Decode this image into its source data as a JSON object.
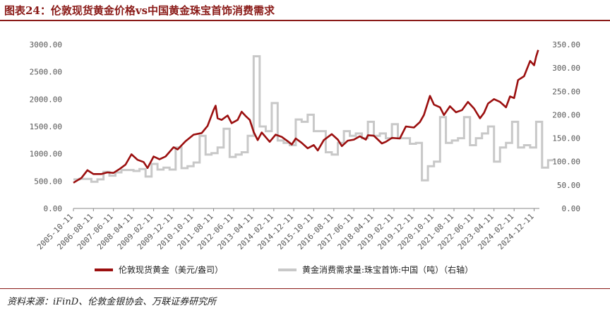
{
  "title": "图表24：伦敦现货黄金价格vs中国黄金珠宝首饰消费需求",
  "source": "资料来源：iFinD、伦敦金银协会、万联证券研究所",
  "colors": {
    "accent": "#8a1a17",
    "gold": "#9b0f0f",
    "demand": "#c8c8c8"
  },
  "chart_data": {
    "type": "line",
    "left_axis": {
      "ylim": [
        0,
        3000
      ],
      "ticks": [
        "0.00",
        "500.00",
        "1000.00",
        "1500.00",
        "2000.00",
        "2500.00",
        "3000.00"
      ]
    },
    "right_axis": {
      "ylim": [
        0,
        350
      ],
      "ticks": [
        "0.00",
        "50.00",
        "100.00",
        "150.00",
        "200.00",
        "250.00",
        "300.00",
        "350.00"
      ]
    },
    "x_ticks": [
      "2005-10-11",
      "2006-08-11",
      "2007-06-11",
      "2008-04-11",
      "2009-02-11",
      "2009-12-11",
      "2010-10-11",
      "2011-08-11",
      "2012-06-11",
      "2013-04-11",
      "2014-02-11",
      "2014-12-11",
      "2015-10-11",
      "2016-08-11",
      "2017-06-11",
      "2018-04-11",
      "2019-02-11",
      "2019-12-11",
      "2020-10-11",
      "2021-08-11",
      "2022-06-11",
      "2023-04-11",
      "2024-02-11",
      "2024-12-11"
    ],
    "series": [
      {
        "name": "伦敦现货黄金（美元/盎司）",
        "axis": "left",
        "points": [
          [
            "2005-10-11",
            470
          ],
          [
            "2006-02-11",
            560
          ],
          [
            "2006-05-11",
            700
          ],
          [
            "2006-08-11",
            630
          ],
          [
            "2006-12-11",
            630
          ],
          [
            "2007-03-11",
            660
          ],
          [
            "2007-06-11",
            650
          ],
          [
            "2007-09-11",
            720
          ],
          [
            "2007-12-11",
            800
          ],
          [
            "2008-03-11",
            990
          ],
          [
            "2008-06-11",
            890
          ],
          [
            "2008-09-11",
            850
          ],
          [
            "2008-11-11",
            740
          ],
          [
            "2009-02-11",
            950
          ],
          [
            "2009-05-11",
            900
          ],
          [
            "2009-08-11",
            950
          ],
          [
            "2009-12-11",
            1120
          ],
          [
            "2010-02-11",
            1080
          ],
          [
            "2010-06-11",
            1230
          ],
          [
            "2010-10-11",
            1350
          ],
          [
            "2011-02-11",
            1380
          ],
          [
            "2011-05-11",
            1510
          ],
          [
            "2011-08-11",
            1800
          ],
          [
            "2011-09-11",
            1880
          ],
          [
            "2011-10-11",
            1650
          ],
          [
            "2011-12-11",
            1620
          ],
          [
            "2012-03-11",
            1700
          ],
          [
            "2012-05-11",
            1560
          ],
          [
            "2012-08-11",
            1620
          ],
          [
            "2012-10-11",
            1770
          ],
          [
            "2012-12-11",
            1690
          ],
          [
            "2013-02-11",
            1620
          ],
          [
            "2013-04-11",
            1400
          ],
          [
            "2013-06-11",
            1250
          ],
          [
            "2013-08-11",
            1390
          ],
          [
            "2013-12-11",
            1220
          ],
          [
            "2014-03-11",
            1350
          ],
          [
            "2014-06-11",
            1310
          ],
          [
            "2014-09-11",
            1230
          ],
          [
            "2014-11-11",
            1170
          ],
          [
            "2015-01-11",
            1280
          ],
          [
            "2015-04-11",
            1200
          ],
          [
            "2015-07-11",
            1100
          ],
          [
            "2015-10-11",
            1160
          ],
          [
            "2015-12-11",
            1060
          ],
          [
            "2016-03-11",
            1250
          ],
          [
            "2016-07-11",
            1360
          ],
          [
            "2016-10-11",
            1260
          ],
          [
            "2016-12-11",
            1140
          ],
          [
            "2017-03-11",
            1240
          ],
          [
            "2017-06-11",
            1260
          ],
          [
            "2017-09-11",
            1320
          ],
          [
            "2017-12-11",
            1260
          ],
          [
            "2018-01-11",
            1340
          ],
          [
            "2018-04-11",
            1330
          ],
          [
            "2018-08-11",
            1190
          ],
          [
            "2018-10-11",
            1220
          ],
          [
            "2019-01-11",
            1290
          ],
          [
            "2019-05-11",
            1280
          ],
          [
            "2019-08-11",
            1500
          ],
          [
            "2019-12-11",
            1480
          ],
          [
            "2020-03-11",
            1580
          ],
          [
            "2020-05-11",
            1710
          ],
          [
            "2020-08-11",
            2060
          ],
          [
            "2020-10-11",
            1900
          ],
          [
            "2021-01-11",
            1850
          ],
          [
            "2021-03-11",
            1710
          ],
          [
            "2021-06-11",
            1870
          ],
          [
            "2021-09-11",
            1760
          ],
          [
            "2021-12-11",
            1800
          ],
          [
            "2022-03-11",
            1950
          ],
          [
            "2022-06-11",
            1830
          ],
          [
            "2022-09-11",
            1650
          ],
          [
            "2022-11-11",
            1750
          ],
          [
            "2023-01-11",
            1920
          ],
          [
            "2023-04-11",
            2000
          ],
          [
            "2023-07-11",
            1950
          ],
          [
            "2023-10-11",
            1850
          ],
          [
            "2023-12-11",
            2050
          ],
          [
            "2024-02-11",
            2020
          ],
          [
            "2024-04-11",
            2350
          ],
          [
            "2024-07-11",
            2420
          ],
          [
            "2024-10-11",
            2700
          ],
          [
            "2024-12-11",
            2620
          ],
          [
            "2025-01-11",
            2780
          ],
          [
            "2025-02-11",
            2900
          ]
        ]
      },
      {
        "name": "黄金消费需求量:珠宝首饰:中国（吨）（右轴）",
        "axis": "right",
        "points": [
          [
            "2005-10-11",
            62
          ],
          [
            "2006-01-11",
            63
          ],
          [
            "2006-04-11",
            63
          ],
          [
            "2006-07-11",
            57
          ],
          [
            "2006-10-11",
            62
          ],
          [
            "2007-01-11",
            78
          ],
          [
            "2007-04-11",
            70
          ],
          [
            "2007-07-11",
            77
          ],
          [
            "2007-10-11",
            82
          ],
          [
            "2008-01-11",
            82
          ],
          [
            "2008-04-11",
            80
          ],
          [
            "2008-07-11",
            84
          ],
          [
            "2008-10-11",
            68
          ],
          [
            "2009-01-11",
            95
          ],
          [
            "2009-04-11",
            83
          ],
          [
            "2009-07-11",
            87
          ],
          [
            "2009-10-11",
            83
          ],
          [
            "2010-01-11",
            130
          ],
          [
            "2010-04-11",
            86
          ],
          [
            "2010-07-11",
            90
          ],
          [
            "2010-10-11",
            98
          ],
          [
            "2011-01-11",
            155
          ],
          [
            "2011-04-11",
            115
          ],
          [
            "2011-07-11",
            118
          ],
          [
            "2011-10-11",
            130
          ],
          [
            "2012-01-11",
            170
          ],
          [
            "2012-04-11",
            110
          ],
          [
            "2012-07-11",
            115
          ],
          [
            "2012-10-11",
            120
          ],
          [
            "2013-01-11",
            155
          ],
          [
            "2013-04-11",
            325
          ],
          [
            "2013-07-11",
            175
          ],
          [
            "2013-10-11",
            165
          ],
          [
            "2014-01-11",
            225
          ],
          [
            "2014-04-11",
            145
          ],
          [
            "2014-07-11",
            140
          ],
          [
            "2014-10-11",
            135
          ],
          [
            "2015-01-11",
            190
          ],
          [
            "2015-04-11",
            185
          ],
          [
            "2015-07-11",
            200
          ],
          [
            "2015-10-11",
            165
          ],
          [
            "2016-01-11",
            165
          ],
          [
            "2016-04-11",
            120
          ],
          [
            "2016-07-11",
            115
          ],
          [
            "2016-10-11",
            140
          ],
          [
            "2017-01-11",
            165
          ],
          [
            "2017-04-11",
            155
          ],
          [
            "2017-07-11",
            160
          ],
          [
            "2017-10-11",
            150
          ],
          [
            "2018-01-11",
            185
          ],
          [
            "2018-04-11",
            155
          ],
          [
            "2018-07-11",
            160
          ],
          [
            "2018-10-11",
            150
          ],
          [
            "2019-01-11",
            180
          ],
          [
            "2019-04-11",
            150
          ],
          [
            "2019-07-11",
            150
          ],
          [
            "2019-10-11",
            138
          ],
          [
            "2020-01-11",
            140
          ],
          [
            "2020-04-11",
            60
          ],
          [
            "2020-07-11",
            90
          ],
          [
            "2020-10-11",
            100
          ],
          [
            "2021-01-11",
            195
          ],
          [
            "2021-04-11",
            140
          ],
          [
            "2021-07-11",
            145
          ],
          [
            "2021-10-11",
            150
          ],
          [
            "2022-01-11",
            195
          ],
          [
            "2022-04-11",
            135
          ],
          [
            "2022-07-11",
            150
          ],
          [
            "2022-10-11",
            160
          ],
          [
            "2023-01-11",
            175
          ],
          [
            "2023-04-11",
            100
          ],
          [
            "2023-07-11",
            130
          ],
          [
            "2023-10-11",
            140
          ],
          [
            "2024-01-11",
            185
          ],
          [
            "2024-04-11",
            130
          ],
          [
            "2024-07-11",
            135
          ],
          [
            "2024-10-11",
            130
          ],
          [
            "2025-01-11",
            185
          ],
          [
            "2025-04-11",
            87
          ],
          [
            "2025-07-11",
            103
          ]
        ]
      }
    ],
    "grid": false,
    "legend_position": "bottom"
  }
}
